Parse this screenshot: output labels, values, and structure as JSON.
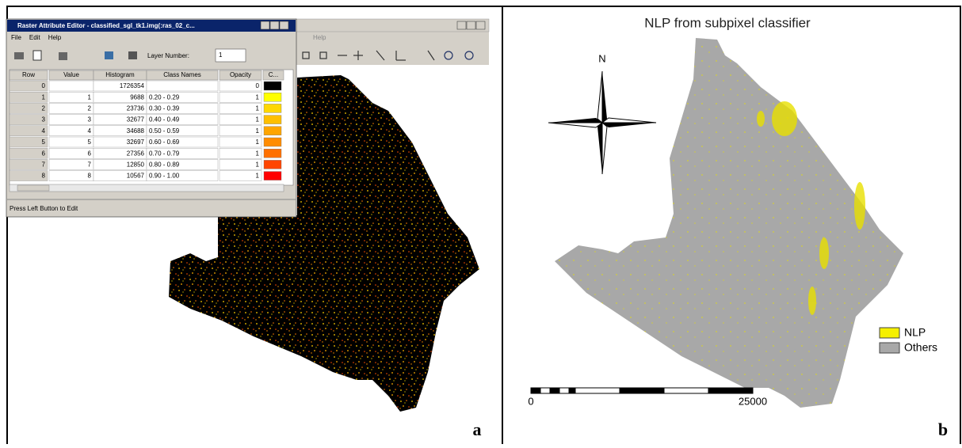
{
  "panel_a": {
    "label": "a",
    "background_menu": "Help",
    "window": {
      "title": "Raster Attribute Editor - classified_sgl_tk1.img(:ras_02_c...",
      "menu": [
        "File",
        "Edit",
        "Help"
      ],
      "layer_number_label": "Layer Number:",
      "layer_number": "1",
      "table": {
        "headers": [
          "Row",
          "Value",
          "Histogram",
          "Class Names",
          "Opacity",
          "C..."
        ],
        "rows": [
          [
            "0",
            "",
            "1726354",
            "",
            "0"
          ],
          [
            "1",
            "1",
            "9688",
            "0.20 - 0.29",
            "1"
          ],
          [
            "2",
            "2",
            "23736",
            "0.30 - 0.39",
            "1"
          ],
          [
            "3",
            "3",
            "32677",
            "0.40 - 0.49",
            "1"
          ],
          [
            "4",
            "4",
            "34688",
            "0.50 - 0.59",
            "1"
          ],
          [
            "5",
            "5",
            "32697",
            "0.60 - 0.69",
            "1"
          ],
          [
            "6",
            "6",
            "27356",
            "0.70 - 0.79",
            "1"
          ],
          [
            "7",
            "7",
            "12850",
            "0.80 - 0.89",
            "1"
          ],
          [
            "8",
            "8",
            "10567",
            "0.90 - 1.00",
            "1"
          ]
        ],
        "colors": [
          "#000000",
          "#ffff00",
          "#ffd700",
          "#ffbf00",
          "#ffa500",
          "#ff8c00",
          "#ff7000",
          "#ff4500",
          "#ff0000"
        ]
      },
      "status": "Press Left Button to Edit"
    }
  },
  "panel_b": {
    "label": "b",
    "title": "NLP from subpixel classifier",
    "north": "N",
    "legend": [
      {
        "name": "NLP",
        "color": "#f5f000"
      },
      {
        "name": "Others",
        "color": "#a8a8a8"
      }
    ],
    "scale": {
      "start": "0",
      "end": "25000"
    }
  }
}
